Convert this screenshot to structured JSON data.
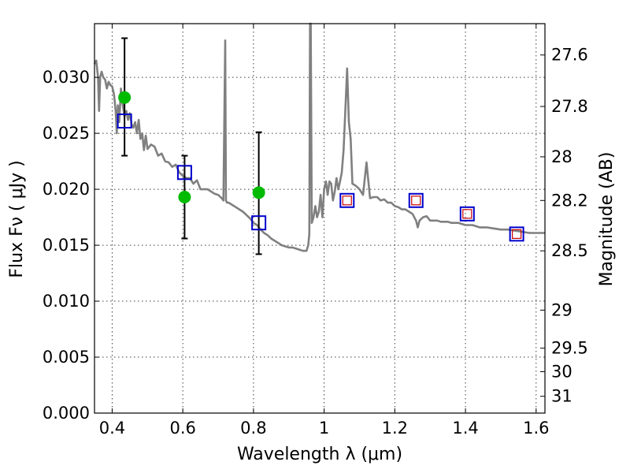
{
  "chart_data": {
    "type": "scatter",
    "xlabel": "Wavelength  λ (μm)",
    "ylabel": "Flux  Fν  ( μJy )",
    "y2label": "Magnitude (AB)",
    "xlim": [
      0.35,
      1.625
    ],
    "ylim": [
      0.0,
      0.0348
    ],
    "grid": true,
    "x_ticks": [
      {
        "value": 0.4,
        "label": "0.4"
      },
      {
        "value": 0.6,
        "label": "0.6"
      },
      {
        "value": 0.8,
        "label": "0.8"
      },
      {
        "value": 1.0,
        "label": "1"
      },
      {
        "value": 1.2,
        "label": "1.2"
      },
      {
        "value": 1.4,
        "label": "1.4"
      },
      {
        "value": 1.6,
        "label": "1.6"
      }
    ],
    "y_ticks": [
      {
        "value": 0.0,
        "label": "0.000"
      },
      {
        "value": 0.005,
        "label": "0.005"
      },
      {
        "value": 0.01,
        "label": "0.010"
      },
      {
        "value": 0.015,
        "label": "0.015"
      },
      {
        "value": 0.02,
        "label": "0.020"
      },
      {
        "value": 0.025,
        "label": "0.025"
      },
      {
        "value": 0.03,
        "label": "0.030"
      }
    ],
    "y2_ticks": [
      {
        "flux": 0.032,
        "label": "27.6"
      },
      {
        "flux": 0.0274,
        "label": "27.8"
      },
      {
        "flux": 0.0229,
        "label": "28"
      },
      {
        "flux": 0.019,
        "label": "28.2"
      },
      {
        "flux": 0.0145,
        "label": "28.5"
      },
      {
        "flux": 0.0092,
        "label": "29"
      },
      {
        "flux": 0.0058,
        "label": "29.5"
      },
      {
        "flux": 0.0037,
        "label": "30"
      },
      {
        "flux": 0.0015,
        "label": "31"
      }
    ],
    "series": [
      {
        "kind": "line",
        "color": "#808080",
        "x": [
          0.35,
          0.355,
          0.36,
          0.363,
          0.366,
          0.37,
          0.375,
          0.38,
          0.385,
          0.39,
          0.395,
          0.4,
          0.405,
          0.41,
          0.413,
          0.416,
          0.42,
          0.425,
          0.43,
          0.435,
          0.44,
          0.445,
          0.45,
          0.455,
          0.46,
          0.465,
          0.47,
          0.475,
          0.48,
          0.485,
          0.49,
          0.495,
          0.5,
          0.51,
          0.52,
          0.53,
          0.54,
          0.55,
          0.56,
          0.57,
          0.58,
          0.59,
          0.6,
          0.61,
          0.62,
          0.63,
          0.64,
          0.65,
          0.66,
          0.67,
          0.68,
          0.69,
          0.7,
          0.71,
          0.715,
          0.72,
          0.722,
          0.725,
          0.73,
          0.74,
          0.75,
          0.76,
          0.77,
          0.78,
          0.79,
          0.8,
          0.81,
          0.82,
          0.83,
          0.84,
          0.85,
          0.86,
          0.87,
          0.88,
          0.89,
          0.9,
          0.91,
          0.92,
          0.93,
          0.94,
          0.95,
          0.955,
          0.958,
          0.96,
          0.962,
          0.965,
          0.97,
          0.975,
          0.98,
          0.985,
          0.99,
          0.995,
          1.0,
          1.005,
          1.01,
          1.015,
          1.02,
          1.025,
          1.03,
          1.035,
          1.04,
          1.045,
          1.05,
          1.055,
          1.06,
          1.065,
          1.07,
          1.075,
          1.08,
          1.09,
          1.1,
          1.11,
          1.12,
          1.13,
          1.14,
          1.15,
          1.16,
          1.17,
          1.18,
          1.19,
          1.2,
          1.21,
          1.22,
          1.23,
          1.24,
          1.25,
          1.26,
          1.265,
          1.27,
          1.28,
          1.29,
          1.3,
          1.31,
          1.32,
          1.33,
          1.34,
          1.35,
          1.36,
          1.37,
          1.38,
          1.39,
          1.4,
          1.42,
          1.44,
          1.46,
          1.48,
          1.5,
          1.52,
          1.54,
          1.56,
          1.58,
          1.6,
          1.625
        ],
        "y": [
          0.0312,
          0.0315,
          0.03,
          0.027,
          0.03,
          0.0305,
          0.03,
          0.0298,
          0.029,
          0.0296,
          0.0293,
          0.0292,
          0.0285,
          0.027,
          0.025,
          0.0275,
          0.026,
          0.029,
          0.0275,
          0.0265,
          0.027,
          0.0262,
          0.0268,
          0.0258,
          0.0255,
          0.026,
          0.025,
          0.0262,
          0.0245,
          0.025,
          0.0235,
          0.0248,
          0.0236,
          0.024,
          0.0238,
          0.023,
          0.0232,
          0.0225,
          0.0224,
          0.022,
          0.0222,
          0.0215,
          0.0212,
          0.021,
          0.021,
          0.0205,
          0.0208,
          0.02,
          0.02,
          0.02,
          0.0198,
          0.0196,
          0.0195,
          0.0192,
          0.019,
          0.0333,
          0.019,
          0.0188,
          0.0188,
          0.0186,
          0.0184,
          0.0182,
          0.018,
          0.0177,
          0.0174,
          0.017,
          0.0168,
          0.0164,
          0.0161,
          0.0159,
          0.0156,
          0.0154,
          0.0152,
          0.015,
          0.0149,
          0.0148,
          0.0148,
          0.0147,
          0.0146,
          0.0145,
          0.0145,
          0.015,
          0.016,
          0.0348,
          0.0348,
          0.017,
          0.0175,
          0.0185,
          0.0175,
          0.018,
          0.0195,
          0.0175,
          0.02,
          0.0207,
          0.0195,
          0.0207,
          0.0205,
          0.019,
          0.0198,
          0.021,
          0.02,
          0.0207,
          0.0215,
          0.0235,
          0.027,
          0.0308,
          0.026,
          0.0245,
          0.0205,
          0.0203,
          0.02,
          0.0195,
          0.0224,
          0.0192,
          0.0193,
          0.0193,
          0.019,
          0.0191,
          0.0188,
          0.0188,
          0.0185,
          0.0184,
          0.0182,
          0.0182,
          0.018,
          0.0178,
          0.0172,
          0.0166,
          0.0172,
          0.0175,
          0.0176,
          0.0172,
          0.0172,
          0.0172,
          0.0171,
          0.0171,
          0.0171,
          0.017,
          0.017,
          0.017,
          0.0169,
          0.0168,
          0.0168,
          0.0166,
          0.0166,
          0.0165,
          0.0164,
          0.0164,
          0.0163,
          0.0162,
          0.0161,
          0.0161,
          0.0161
        ]
      },
      {
        "kind": "points",
        "color": "#00bb00",
        "x": [
          0.435,
          0.605,
          0.815
        ],
        "y": [
          0.0282,
          0.0193,
          0.0197
        ],
        "yerr_low": [
          0.023,
          0.0156,
          0.0142
        ],
        "yerr_high": [
          0.0335,
          0.023,
          0.0251
        ]
      },
      {
        "kind": "squares",
        "color": "#0000cc",
        "x": [
          0.435,
          0.605,
          0.815,
          1.065,
          1.26,
          1.405,
          1.545
        ],
        "y": [
          0.0261,
          0.0215,
          0.017,
          0.019,
          0.019,
          0.0178,
          0.016
        ]
      },
      {
        "kind": "squares-small",
        "color": "#cc0000",
        "x": [
          1.065,
          1.26,
          1.405,
          1.545
        ],
        "y": [
          0.019,
          0.019,
          0.0178,
          0.016
        ]
      }
    ]
  }
}
